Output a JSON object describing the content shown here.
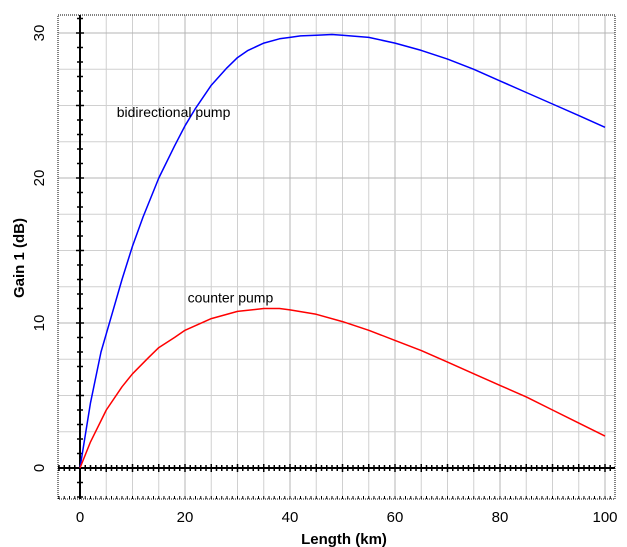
{
  "chart_data": {
    "type": "line",
    "title": "",
    "xlabel": "Length (km)",
    "ylabel": "Gain 1 (dB)",
    "xlim": [
      0,
      100
    ],
    "ylim": [
      0,
      30
    ],
    "xticks": [
      0,
      20,
      40,
      60,
      80,
      100
    ],
    "yticks": [
      0,
      10,
      20,
      30
    ],
    "grid": true,
    "series": [
      {
        "name": "bidirectional pump",
        "color": "#0000ff",
        "x": [
          0,
          2,
          4,
          6,
          8,
          10,
          12,
          15,
          18,
          20,
          22,
          25,
          28,
          30,
          32,
          35,
          38,
          40,
          42,
          45,
          48,
          50,
          55,
          60,
          65,
          70,
          75,
          80,
          85,
          90,
          95,
          100
        ],
        "y": [
          0,
          4.5,
          8.0,
          10.5,
          13.0,
          15.3,
          17.3,
          20.0,
          22.2,
          23.6,
          24.8,
          26.4,
          27.6,
          28.3,
          28.8,
          29.3,
          29.6,
          29.7,
          29.8,
          29.85,
          29.9,
          29.85,
          29.7,
          29.3,
          28.8,
          28.2,
          27.5,
          26.7,
          25.9,
          25.1,
          24.3,
          23.5
        ]
      },
      {
        "name": "counter pump",
        "color": "#ff0000",
        "x": [
          0,
          2,
          5,
          8,
          10,
          13,
          15,
          18,
          20,
          25,
          30,
          35,
          38,
          40,
          45,
          50,
          55,
          60,
          65,
          70,
          75,
          80,
          85,
          90,
          95,
          100
        ],
        "y": [
          0,
          1.8,
          4.0,
          5.6,
          6.5,
          7.6,
          8.3,
          9.0,
          9.5,
          10.3,
          10.8,
          11.0,
          11.0,
          10.9,
          10.6,
          10.1,
          9.5,
          8.8,
          8.1,
          7.3,
          6.5,
          5.7,
          4.9,
          4.0,
          3.1,
          2.2
        ]
      }
    ],
    "annotations": [
      {
        "text": "bidirectional pump",
        "x": 7,
        "y": 24.2
      },
      {
        "text": "counter pump",
        "x": 20.5,
        "y": 11.4
      }
    ]
  }
}
